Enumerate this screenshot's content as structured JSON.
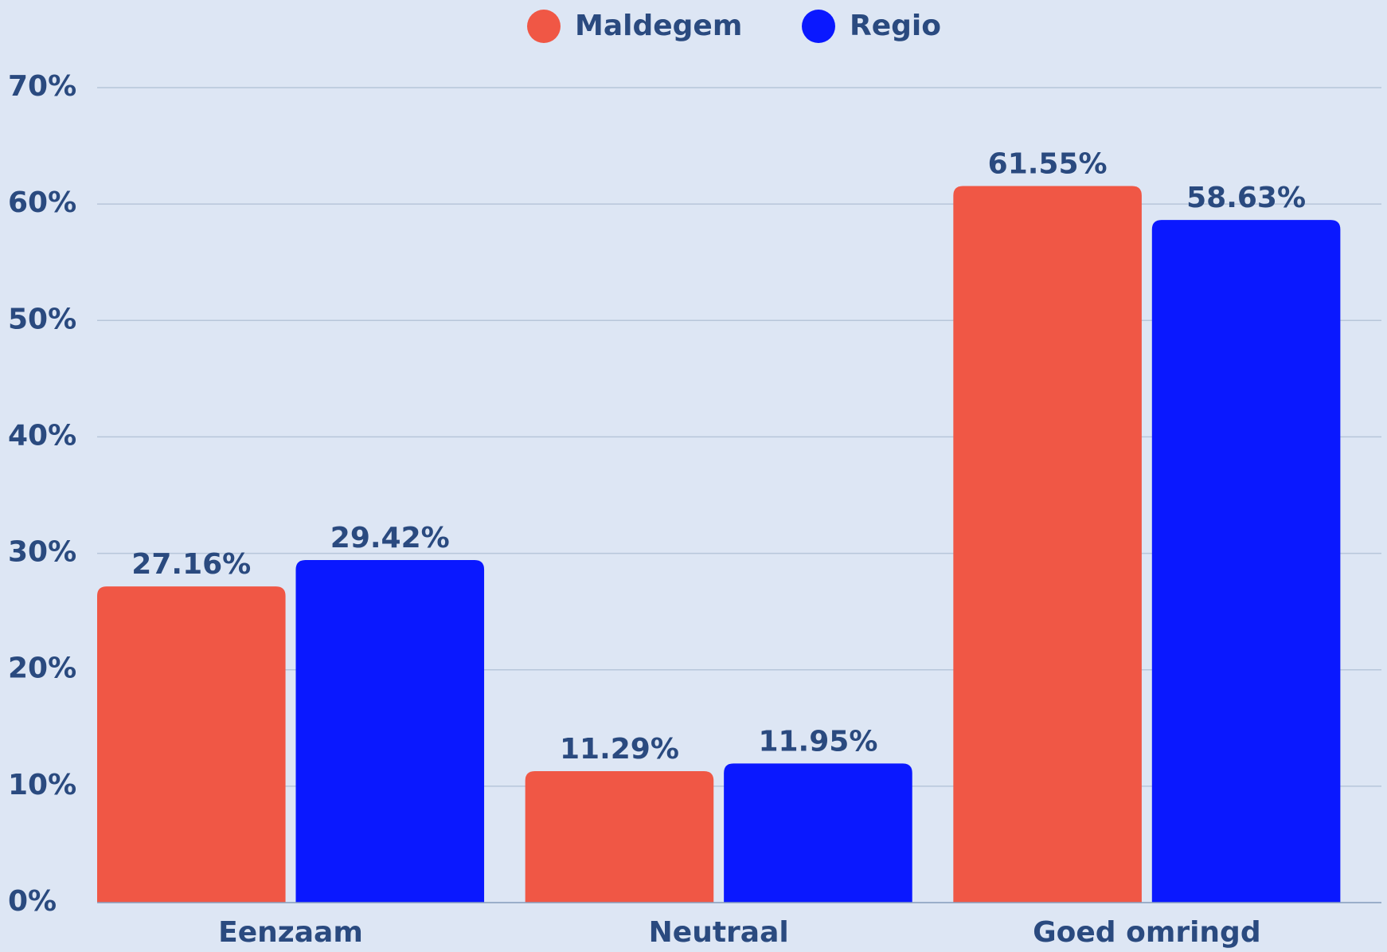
{
  "chart_data": {
    "type": "bar",
    "categories": [
      "Eenzaam",
      "Neutraal",
      "Goed omringd"
    ],
    "series": [
      {
        "name": "Maldegem",
        "color": "#f05745",
        "values": [
          27.16,
          11.29,
          61.55
        ],
        "value_labels": [
          "27.16%",
          "11.29%",
          "61.55%"
        ]
      },
      {
        "name": "Regio",
        "color": "#0a18ff",
        "values": [
          29.42,
          11.95,
          58.63
        ],
        "value_labels": [
          "29.42%",
          "11.95%",
          "58.63%"
        ]
      }
    ],
    "ylim": [
      0,
      70
    ],
    "yticks": [
      {
        "value": 0,
        "label": "0%"
      },
      {
        "value": 10,
        "label": "10%"
      },
      {
        "value": 20,
        "label": "20%"
      },
      {
        "value": 30,
        "label": "30%"
      },
      {
        "value": 40,
        "label": "40%"
      },
      {
        "value": 50,
        "label": "50%"
      },
      {
        "value": 60,
        "label": "60%"
      },
      {
        "value": 70,
        "label": "70%"
      }
    ],
    "grid": true,
    "legend": "top"
  }
}
